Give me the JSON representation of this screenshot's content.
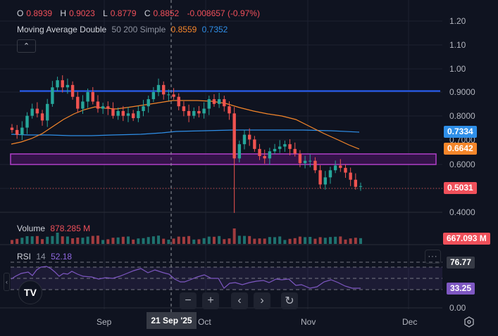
{
  "legend": {
    "ohlc": {
      "o_label": "O",
      "o_value": "0.8939",
      "h_label": "H",
      "h_value": "0.9023",
      "l_label": "L",
      "l_value": "0.8779",
      "c_label": "C",
      "c_value": "0.8852",
      "change": "-0.008657 (-0.97%)"
    },
    "ma": {
      "name": "Moving Average Double",
      "params": "50 200 Simple",
      "ma50_value": "0.8559",
      "ma200_value": "0.7352"
    },
    "collapse_icon": "chevron-up-icon",
    "volume": {
      "label": "Volume",
      "value": "878.285 M"
    },
    "rsi": {
      "label": "RSI",
      "length": "14",
      "value": "52.18"
    }
  },
  "price_axis": {
    "ticks": [
      "1.20",
      "1.10",
      "1.00",
      "0.9000",
      "0.8000",
      "0.7000",
      "0.6000",
      "0.4000"
    ],
    "badges": {
      "ma200": {
        "value": "0.7334",
        "color": "#2f8fe8"
      },
      "ma50": {
        "value": "0.6642",
        "color": "#f5862a"
      },
      "last_price": {
        "value": "0.5031",
        "color": "#f0505a"
      },
      "volume": {
        "value": "667.093 M",
        "color": "#f0505a"
      }
    }
  },
  "rsi_axis": {
    "ticks": [
      "0.00"
    ],
    "badges": {
      "upper": {
        "value": "76.77",
        "color": "#363a45"
      },
      "rsi": {
        "value": "33.25",
        "color": "#7e57c2"
      }
    }
  },
  "time_axis": {
    "labels": [
      "Sep",
      "Oct",
      "Nov",
      "Dec"
    ],
    "crosshair": "21 Sep '25"
  },
  "nav_buttons": {
    "zoom_out": "−",
    "zoom_in": "+",
    "scroll_left": "‹",
    "scroll_right": "›",
    "reset": "↻"
  },
  "logo": "TV",
  "more_icon": "···",
  "colors": {
    "up": "#26a69a",
    "down": "#ef5350",
    "ma50": "#f5862a",
    "ma200": "#2f8fe8",
    "hline": "#2962ff",
    "zone": "#9c27b0",
    "rsi": "#7e57c2",
    "bg": "#0f1320"
  },
  "chart_data": {
    "type": "candlestick",
    "title": "",
    "legend": [
      "Moving Average Double 50 200 Simple",
      "Volume",
      "RSI 14"
    ],
    "x_labels": [
      "Sep",
      "Oct",
      "Nov",
      "Dec"
    ],
    "crosshair_date": "21 Sep '25",
    "ylim": [
      0.38,
      1.25
    ],
    "price_close_approx": [
      0.74,
      0.72,
      0.75,
      0.8,
      0.83,
      0.81,
      0.78,
      0.85,
      0.92,
      0.95,
      0.92,
      0.93,
      0.88,
      0.83,
      0.86,
      0.9,
      0.86,
      0.83,
      0.84,
      0.83,
      0.8,
      0.82,
      0.8,
      0.81,
      0.79,
      0.82,
      0.84,
      0.87,
      0.9,
      0.93,
      0.89,
      0.89,
      0.88,
      0.84,
      0.82,
      0.8,
      0.82,
      0.81,
      0.83,
      0.87,
      0.85,
      0.87,
      0.84,
      0.81,
      0.62,
      0.68,
      0.72,
      0.7,
      0.66,
      0.63,
      0.62,
      0.65,
      0.66,
      0.67,
      0.68,
      0.66,
      0.64,
      0.6,
      0.61,
      0.61,
      0.57,
      0.51,
      0.54,
      0.57,
      0.59,
      0.58,
      0.56,
      0.53,
      0.5,
      0.503
    ],
    "horizontal_line": 0.905,
    "zone": {
      "top": 0.645,
      "bottom": 0.6
    },
    "last_price": 0.5031,
    "ma50": {
      "current": 0.6642,
      "legend_value": 0.8559
    },
    "ma200": {
      "current": 0.7334,
      "legend_value": 0.7352
    },
    "volume": {
      "legend_value": "878.285 M",
      "last": "667.093 M"
    },
    "rsi": {
      "length": 14,
      "legend_value": 52.18,
      "current": 33.25,
      "band_upper": 70,
      "band_lower": 30,
      "marker": 76.77
    }
  }
}
